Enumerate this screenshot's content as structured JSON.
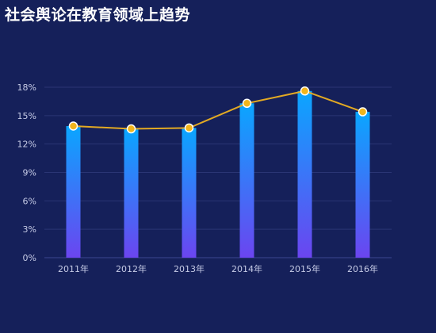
{
  "title": "社会舆论在教育领域上趋势",
  "chart_data": {
    "type": "bar",
    "title": "社会舆论在教育领域上趋势",
    "categories": [
      "2011年",
      "2012年",
      "2013年",
      "2014年",
      "2015年",
      "2016年"
    ],
    "series": [
      {
        "type": "bar",
        "values": [
          13.9,
          13.6,
          13.7,
          16.3,
          17.6,
          15.4
        ]
      },
      {
        "type": "line",
        "values": [
          13.9,
          13.6,
          13.7,
          16.3,
          17.6,
          15.4
        ]
      }
    ],
    "ylim": [
      0,
      18
    ],
    "yticks": [
      0,
      3,
      6,
      9,
      12,
      15,
      18
    ],
    "ytick_labels": [
      "0%",
      "3%",
      "6%",
      "9%",
      "12%",
      "15%",
      "18%"
    ],
    "xlabel": "",
    "ylabel": "",
    "grid": true,
    "legend": "none",
    "colors": {
      "background": "#15205a",
      "bar_top": "#0aa6ff",
      "bar_bottom": "#6b45f0",
      "line": "#e2a923",
      "marker_fill": "#f2b51c",
      "marker_stroke": "#ffffff",
      "grid": "#2a3574",
      "axis": "#3a4690",
      "tick_text": "#c6cbe6"
    }
  }
}
